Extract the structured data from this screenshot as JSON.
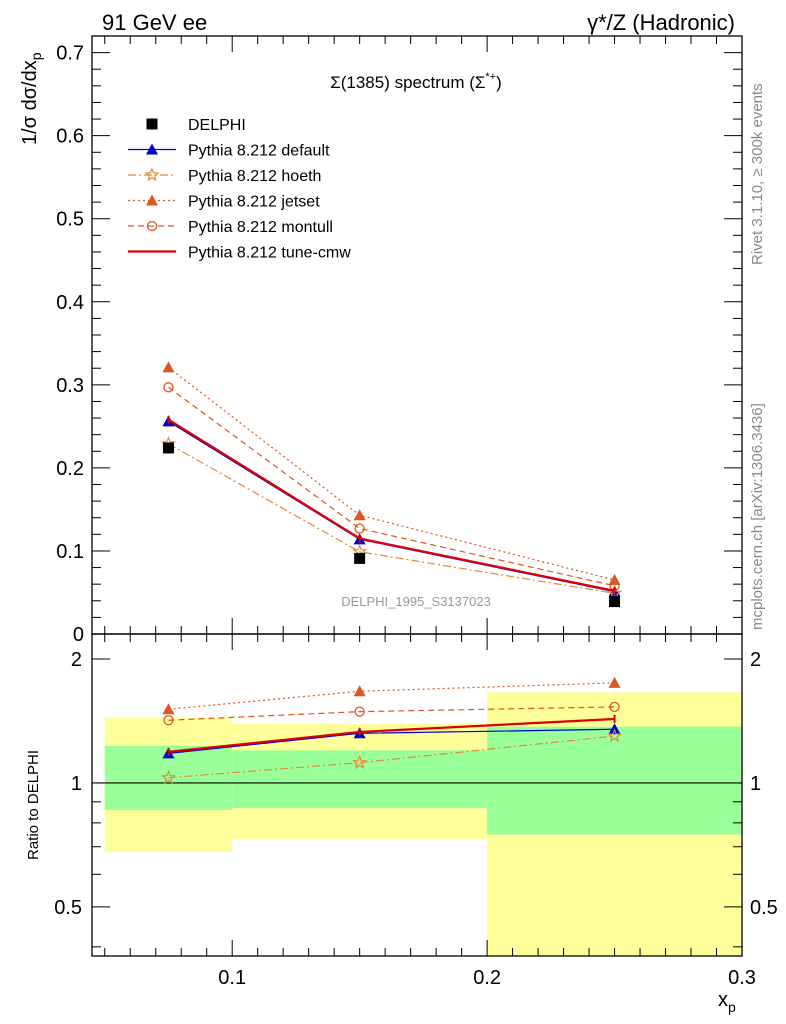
{
  "header": {
    "left": "91 GeV ee",
    "right": "γ*/Z (Hadronic)"
  },
  "side_labels": {
    "rivet": "Rivet 3.1.10, ≥ 300k events",
    "mcplots": "mcplots.cern.ch [arXiv:1306.3436]"
  },
  "chart_data": {
    "type": "line",
    "title": "Σ(1385) spectrum (Σ*+)",
    "watermark": "DELPHI_1995_S3137023",
    "xlabel": "x_p",
    "ylabel": "1/σ dσ/dx_p",
    "ratio_ylabel": "Ratio to DELPHI",
    "xlim": [
      0.045,
      0.3
    ],
    "ylim": [
      0,
      0.72
    ],
    "ratio_ylim": [
      0.38,
      2.3
    ],
    "x_ticks": [
      "0.1",
      "0.2",
      "0.3"
    ],
    "y_ticks": [
      "0",
      "0.1",
      "0.2",
      "0.3",
      "0.4",
      "0.5",
      "0.6",
      "0.7"
    ],
    "ratio_ticks": [
      "0.5",
      "1",
      "2"
    ],
    "legend_position": "top-left",
    "x": [
      0.075,
      0.15,
      0.25
    ],
    "bins": [
      [
        0.05,
        0.1
      ],
      [
        0.1,
        0.2
      ],
      [
        0.2,
        0.3
      ]
    ],
    "data": {
      "name": "DELPHI",
      "values": [
        0.224,
        0.091,
        0.039
      ]
    },
    "bands": {
      "inner_lo": [
        0.86,
        0.87,
        0.75
      ],
      "inner_hi": [
        1.23,
        1.2,
        1.37
      ],
      "outer_lo": [
        0.68,
        0.73,
        0.38
      ],
      "outer_hi": [
        1.44,
        1.39,
        1.66
      ]
    },
    "series": [
      {
        "name": "Pythia 8.212 default",
        "color": "#0000cc",
        "dash": "solid",
        "marker": "triangle",
        "values": [
          0.256,
          0.114,
          0.051
        ],
        "ratio": [
          1.18,
          1.32,
          1.35
        ]
      },
      {
        "name": "Pythia 8.212 hoeth",
        "color": "#e08b3a",
        "dash": "dashdot",
        "marker": "star",
        "values": [
          0.229,
          0.099,
          0.049
        ],
        "ratio": [
          1.03,
          1.12,
          1.3
        ]
      },
      {
        "name": "Pythia 8.212 jetset",
        "color": "#dd5522",
        "dash": "dotted",
        "marker": "triangle",
        "values": [
          0.321,
          0.143,
          0.065
        ],
        "ratio": [
          1.51,
          1.67,
          1.75
        ]
      },
      {
        "name": "Pythia 8.212 montull",
        "color": "#dd5522",
        "dash": "dashed",
        "marker": "circle",
        "values": [
          0.297,
          0.127,
          0.058
        ],
        "ratio": [
          1.42,
          1.49,
          1.53
        ]
      },
      {
        "name": "Pythia 8.212 tune-cmw",
        "color": "#dd0000",
        "dash": "solid",
        "marker": "none",
        "values": [
          0.258,
          0.115,
          0.052
        ],
        "ratio": [
          1.19,
          1.33,
          1.43
        ]
      }
    ]
  }
}
